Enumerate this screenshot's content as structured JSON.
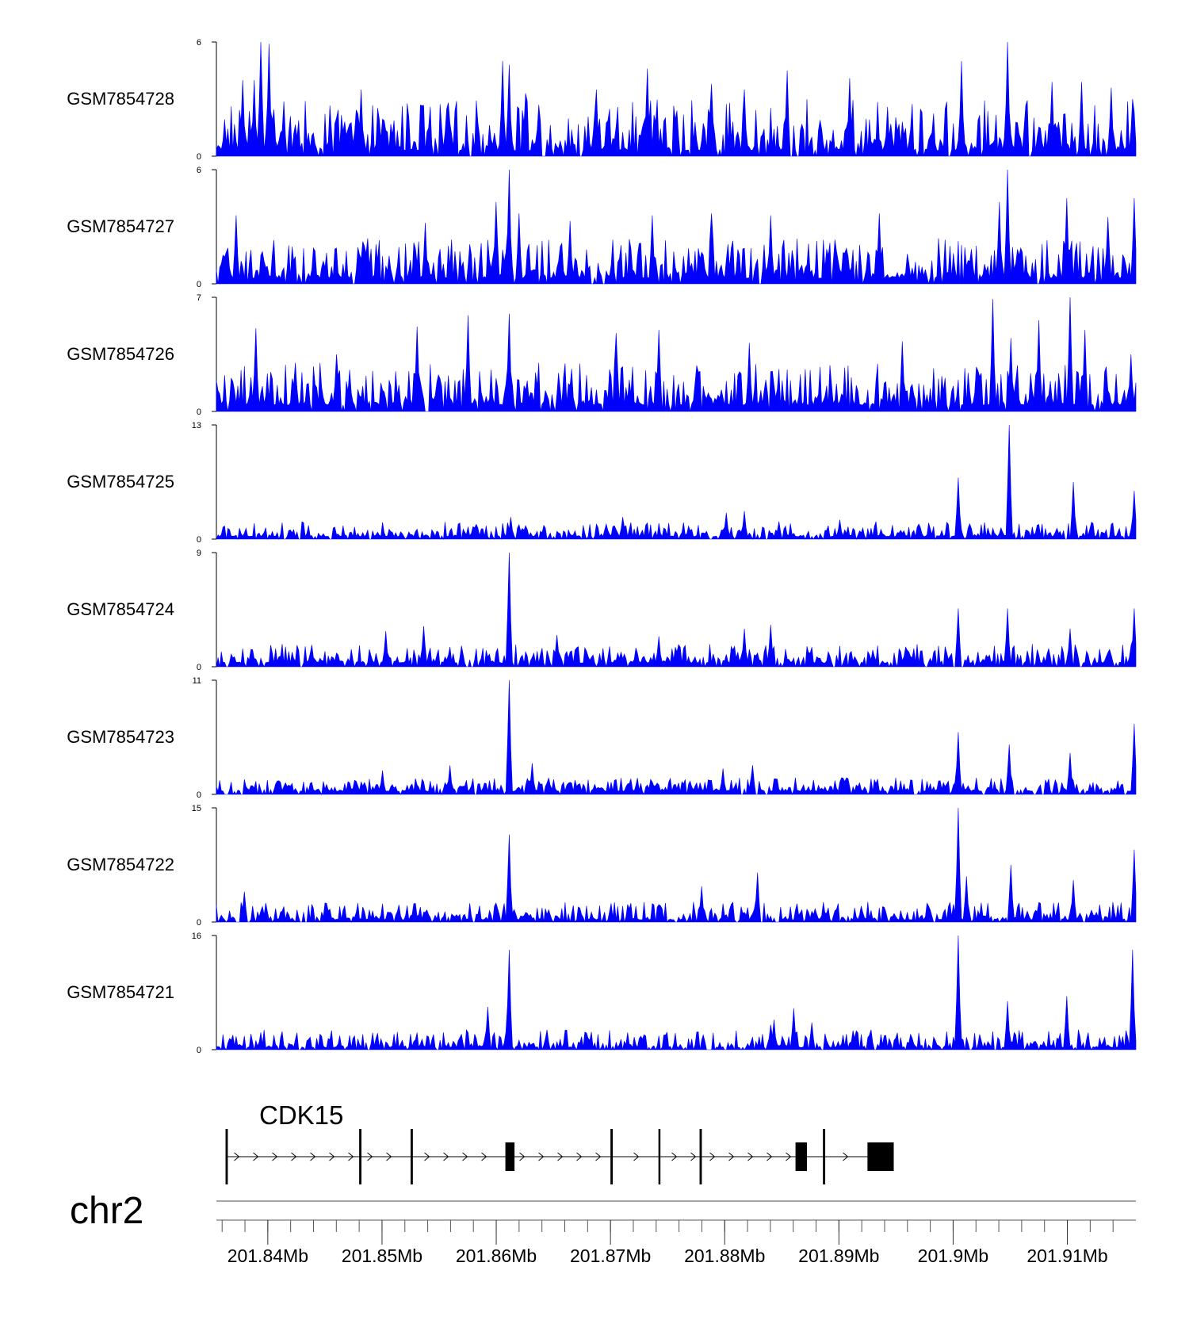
{
  "chart_data": {
    "type": "area",
    "title": "",
    "chromosome": "chr2",
    "xlim_mb": [
      201.8355,
      201.916
    ],
    "axis_ticks_mb": [
      201.84,
      201.85,
      201.86,
      201.87,
      201.88,
      201.89,
      201.9,
      201.91
    ],
    "axis_tick_labels": [
      "201.84Mb",
      "201.85Mb",
      "201.86Mb",
      "201.87Mb",
      "201.88Mb",
      "201.89Mb",
      "201.9Mb",
      "201.91Mb"
    ],
    "fill_color": "#0000ff",
    "tracks": [
      {
        "name": "GSM7854728",
        "ymin": 0,
        "ymax": 6,
        "ymin_label": "0",
        "ymax_label": "6",
        "peaks": [
          [
            201.8401,
            5.9
          ],
          [
            201.8394,
            6.0
          ],
          [
            201.8378,
            4.0
          ],
          [
            201.8388,
            4.0
          ],
          [
            201.8482,
            3.5
          ],
          [
            201.8606,
            5.0
          ],
          [
            201.8612,
            4.8
          ],
          [
            201.8626,
            3.3
          ],
          [
            201.8687,
            3.5
          ],
          [
            201.8733,
            4.6
          ],
          [
            201.8789,
            3.8
          ],
          [
            201.8817,
            3.5
          ],
          [
            201.8855,
            4.5
          ],
          [
            201.891,
            4.1
          ],
          [
            201.9008,
            5.0
          ],
          [
            201.9048,
            6.0
          ],
          [
            201.9087,
            3.9
          ],
          [
            201.9113,
            3.9
          ],
          [
            201.9139,
            3.6
          ],
          [
            201.9157,
            3.0
          ]
        ],
        "noise": {
          "density": 0.9,
          "min": 0.3,
          "max": 3.0
        }
      },
      {
        "name": "GSM7854727",
        "ymin": 0,
        "ymax": 6,
        "ymin_label": "0",
        "ymax_label": "6",
        "peaks": [
          [
            201.8612,
            6.0
          ],
          [
            201.86,
            4.3
          ],
          [
            201.862,
            3.7
          ],
          [
            201.8372,
            3.6
          ],
          [
            201.8664,
            3.3
          ],
          [
            201.8737,
            3.6
          ],
          [
            201.8789,
            3.7
          ],
          [
            201.884,
            3.6
          ],
          [
            201.8935,
            3.7
          ],
          [
            201.904,
            4.3
          ],
          [
            201.9048,
            6.0
          ],
          [
            201.91,
            4.5
          ],
          [
            201.9136,
            3.5
          ],
          [
            201.9158,
            4.5
          ],
          [
            201.8538,
            3.2
          ]
        ],
        "noise": {
          "density": 0.9,
          "min": 0.3,
          "max": 2.4
        }
      },
      {
        "name": "GSM7854726",
        "ymin": 0,
        "ymax": 7,
        "ymin_label": "0",
        "ymax_label": "7",
        "peaks": [
          [
            201.839,
            5.1
          ],
          [
            201.846,
            3.5
          ],
          [
            201.853,
            5.2
          ],
          [
            201.8576,
            5.9
          ],
          [
            201.8612,
            6.0
          ],
          [
            201.8705,
            4.8
          ],
          [
            201.8742,
            5.0
          ],
          [
            201.8822,
            4.2
          ],
          [
            201.8955,
            4.3
          ],
          [
            201.9034,
            6.9
          ],
          [
            201.905,
            4.5
          ],
          [
            201.9075,
            5.6
          ],
          [
            201.9102,
            7.0
          ],
          [
            201.9115,
            5.0
          ],
          [
            201.9155,
            3.5
          ]
        ],
        "noise": {
          "density": 0.92,
          "min": 0.4,
          "max": 3.0
        }
      },
      {
        "name": "GSM7854725",
        "ymin": 0,
        "ymax": 13,
        "ymin_label": "0",
        "ymax_label": "13",
        "peaks": [
          [
            201.9005,
            7.0
          ],
          [
            201.9049,
            13.0
          ],
          [
            201.9105,
            6.5
          ],
          [
            201.9158,
            5.5
          ],
          [
            201.8613,
            2.5
          ],
          [
            201.8711,
            2.5
          ],
          [
            201.8801,
            3.0
          ],
          [
            201.8817,
            3.2
          ],
          [
            201.8848,
            2.0
          ],
          [
            201.8901,
            2.2
          ]
        ],
        "noise": {
          "density": 0.85,
          "min": 0.3,
          "max": 2.0
        }
      },
      {
        "name": "GSM7854724",
        "ymin": 0,
        "ymax": 9,
        "ymin_label": "0",
        "ymax_label": "9",
        "peaks": [
          [
            201.8612,
            9.0
          ],
          [
            201.8653,
            2.5
          ],
          [
            201.8742,
            2.4
          ],
          [
            201.8817,
            3.0
          ],
          [
            201.884,
            3.3
          ],
          [
            201.9005,
            4.6
          ],
          [
            201.9047,
            4.6
          ],
          [
            201.9103,
            3.0
          ],
          [
            201.9158,
            4.6
          ],
          [
            201.8536,
            3.2
          ],
          [
            201.8503,
            2.8
          ]
        ],
        "noise": {
          "density": 0.85,
          "min": 0.3,
          "max": 1.8
        }
      },
      {
        "name": "GSM7854723",
        "ymin": 0,
        "ymax": 11,
        "ymin_label": "0",
        "ymax_label": "11",
        "peaks": [
          [
            201.8612,
            11.0
          ],
          [
            201.8631,
            3.0
          ],
          [
            201.8799,
            2.5
          ],
          [
            201.8825,
            2.8
          ],
          [
            201.9005,
            6.0
          ],
          [
            201.9049,
            4.8
          ],
          [
            201.9103,
            4.0
          ],
          [
            201.9158,
            6.8
          ],
          [
            201.8501,
            2.3
          ],
          [
            201.856,
            2.8
          ]
        ],
        "noise": {
          "density": 0.85,
          "min": 0.3,
          "max": 1.6
        }
      },
      {
        "name": "GSM7854722",
        "ymin": 0,
        "ymax": 15,
        "ymin_label": "0",
        "ymax_label": "15",
        "peaks": [
          [
            201.8612,
            11.5
          ],
          [
            201.8829,
            6.5
          ],
          [
            201.878,
            4.7
          ],
          [
            201.9005,
            15.0
          ],
          [
            201.9011,
            6.0
          ],
          [
            201.905,
            7.5
          ],
          [
            201.9105,
            5.5
          ],
          [
            201.9158,
            9.5
          ],
          [
            201.838,
            4.0
          ]
        ],
        "noise": {
          "density": 0.85,
          "min": 0.3,
          "max": 2.7
        }
      },
      {
        "name": "GSM7854721",
        "ymin": 0,
        "ymax": 16,
        "ymin_label": "0",
        "ymax_label": "16",
        "peaks": [
          [
            201.8611,
            14.0
          ],
          [
            201.8593,
            6.0
          ],
          [
            201.8843,
            4.2
          ],
          [
            201.886,
            5.8
          ],
          [
            201.9004,
            16.0
          ],
          [
            201.9048,
            6.8
          ],
          [
            201.91,
            7.5
          ],
          [
            201.9157,
            14.0
          ],
          [
            201.884,
            3.5
          ],
          [
            201.8877,
            3.8
          ]
        ],
        "noise": {
          "density": 0.85,
          "min": 0.3,
          "max": 2.8
        }
      }
    ],
    "gene": {
      "name": "CDK15",
      "strand": "+",
      "start_mb": 201.8363,
      "end_mb": 201.8948,
      "exons_mb": [
        [
          201.8363,
          201.8365
        ],
        [
          201.848,
          201.8482
        ],
        [
          201.8525,
          201.8527
        ],
        [
          201.8608,
          201.8616
        ],
        [
          201.87,
          201.8702
        ],
        [
          201.8742,
          201.8743
        ],
        [
          201.8778,
          201.878
        ],
        [
          201.8862,
          201.8872
        ],
        [
          201.8886,
          201.8888
        ],
        [
          201.8925,
          201.8948
        ]
      ]
    }
  }
}
